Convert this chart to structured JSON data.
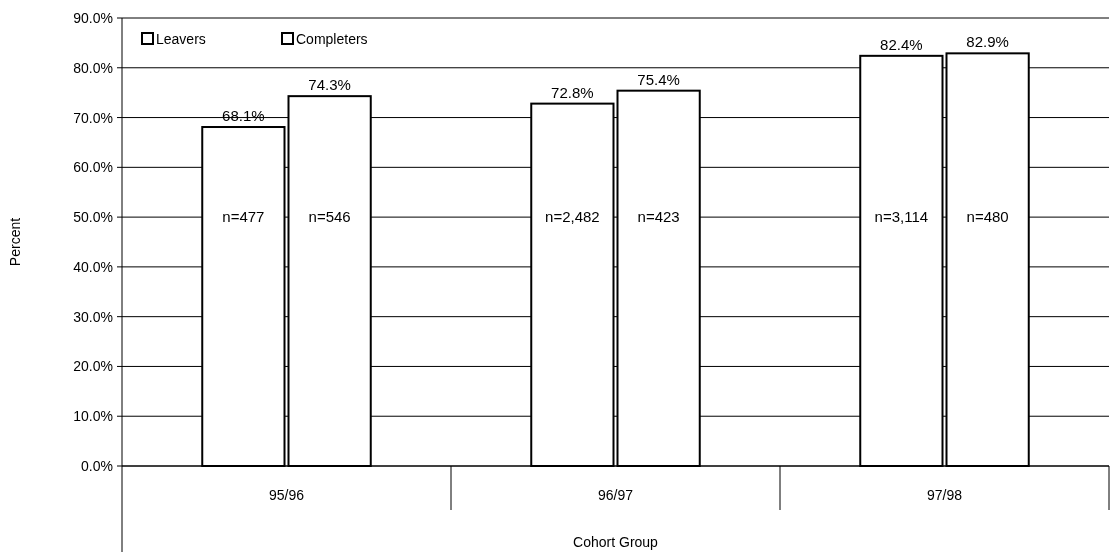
{
  "chart_data": {
    "type": "bar",
    "xlabel": "Cohort Group",
    "ylabel": "Percent",
    "categories": [
      "95/96",
      "96/97",
      "97/98"
    ],
    "series": [
      {
        "name": "Leavers",
        "color": "#ffffff",
        "values": [
          68.1,
          72.8,
          82.4
        ],
        "value_labels": [
          "68.1%",
          "72.8%",
          "82.4%"
        ]
      },
      {
        "name": "Completers",
        "color": "#ffffff",
        "values": [
          74.3,
          75.4,
          82.9
        ],
        "value_labels": [
          "74.3%",
          "75.4%",
          "82.9%"
        ]
      }
    ],
    "ylim": [
      0,
      90
    ],
    "yticks": [
      {
        "value": 0,
        "label": "0.0%"
      },
      {
        "value": 10,
        "label": "10.0%"
      },
      {
        "value": 20,
        "label": "20.0%"
      },
      {
        "value": 30,
        "label": "30.0%"
      },
      {
        "value": 40,
        "label": "40.0%"
      },
      {
        "value": 50,
        "label": "50.0%"
      },
      {
        "value": 60,
        "label": "60.0%"
      },
      {
        "value": 70,
        "label": "70.0%"
      },
      {
        "value": 80,
        "label": "80.0%"
      },
      {
        "value": 90,
        "label": "90.0%"
      }
    ],
    "grid": "y",
    "legend": "top left",
    "annotations": [
      {
        "text": "n=477",
        "x": "95/96",
        "y": 50
      },
      {
        "text": "n=546",
        "x": "95/96",
        "y": 50
      },
      {
        "text": "n=2,482",
        "x": "96/97",
        "y": 50
      },
      {
        "text": "n=423",
        "x": "96/97",
        "y": 50
      },
      {
        "text": "n=3,114",
        "x": "97/98",
        "y": 50
      },
      {
        "text": "n=480",
        "x": "97/98",
        "y": 50
      }
    ]
  }
}
